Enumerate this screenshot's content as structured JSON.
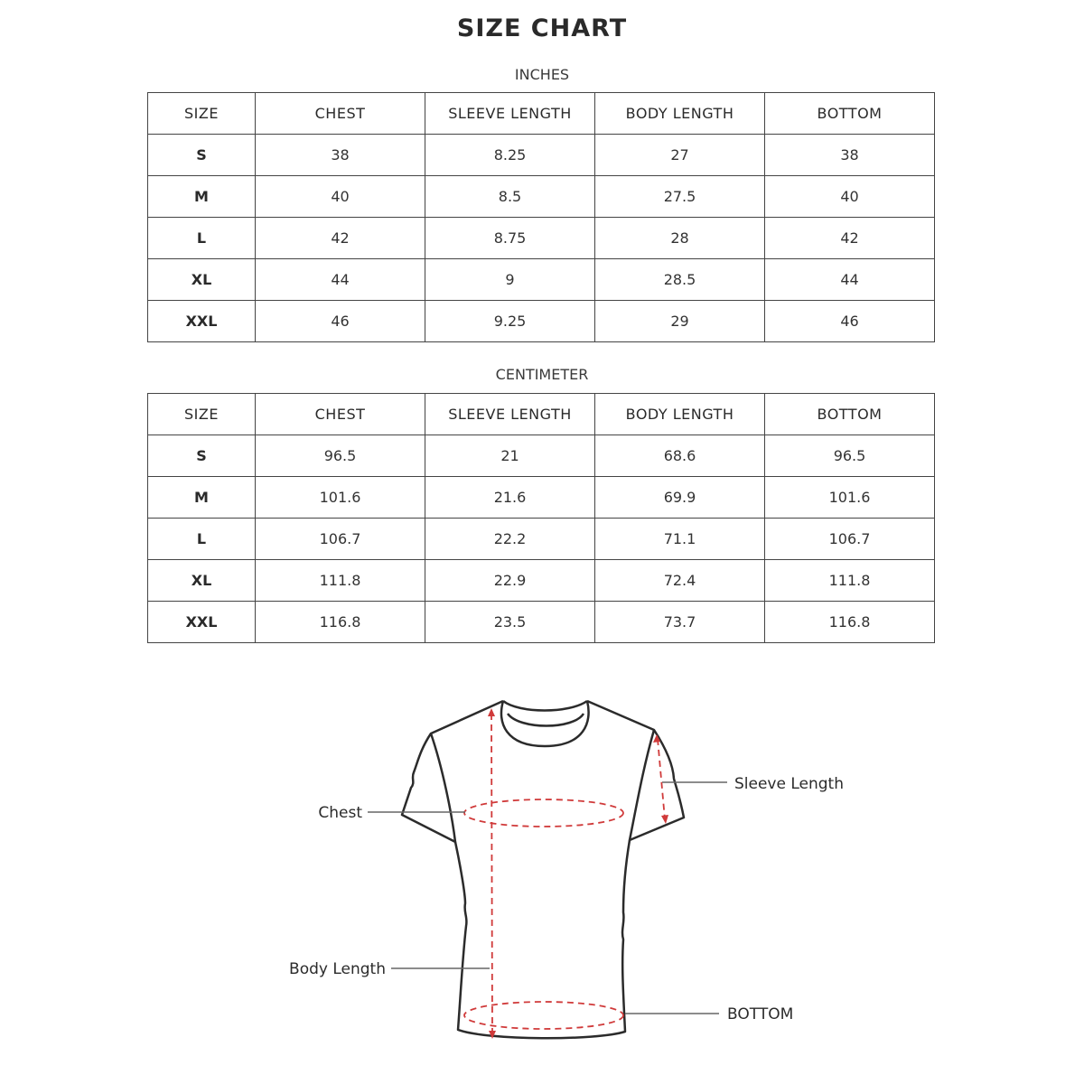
{
  "title": "SIZE CHART",
  "tables": [
    {
      "unit": "INCHES",
      "headers": [
        "SIZE",
        "CHEST",
        "SLEEVE LENGTH",
        "BODY LENGTH",
        "BOTTOM"
      ],
      "rows": [
        [
          "S",
          "38",
          "8.25",
          "27",
          "38"
        ],
        [
          "M",
          "40",
          "8.5",
          "27.5",
          "40"
        ],
        [
          "L",
          "42",
          "8.75",
          "28",
          "42"
        ],
        [
          "XL",
          "44",
          "9",
          "28.5",
          "44"
        ],
        [
          "XXL",
          "46",
          "9.25",
          "29",
          "46"
        ]
      ]
    },
    {
      "unit": "CENTIMETER",
      "headers": [
        "SIZE",
        "CHEST",
        "SLEEVE LENGTH",
        "BODY LENGTH",
        "BOTTOM"
      ],
      "rows": [
        [
          "S",
          "96.5",
          "21",
          "68.6",
          "96.5"
        ],
        [
          "M",
          "101.6",
          "21.6",
          "69.9",
          "101.6"
        ],
        [
          "L",
          "106.7",
          "22.2",
          "71.1",
          "106.7"
        ],
        [
          "XL",
          "111.8",
          "22.9",
          "72.4",
          "111.8"
        ],
        [
          "XXL",
          "116.8",
          "23.5",
          "73.7",
          "116.8"
        ]
      ]
    }
  ],
  "diagram": {
    "labels": {
      "chest": "Chest",
      "sleeve_length": "Sleeve Length",
      "body_length": "Body Length",
      "bottom": "BOTTOM"
    },
    "colors": {
      "outline": "#2b2b2b",
      "measure": "#d03a3a"
    }
  }
}
